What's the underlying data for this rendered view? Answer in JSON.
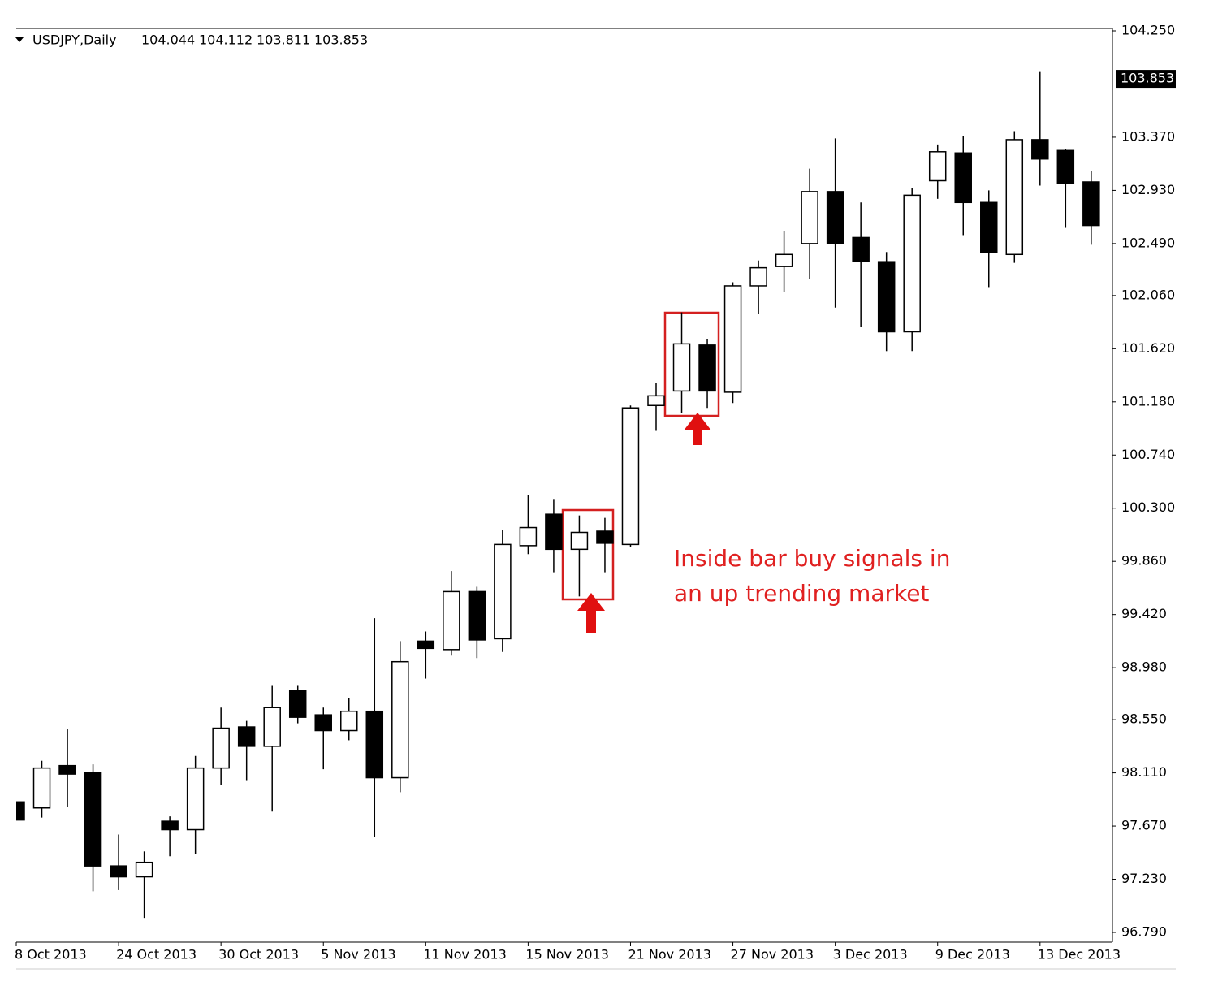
{
  "chart_data": {
    "type": "candlestick",
    "symbol": "USDJPY,Daily",
    "last_bar": {
      "open": 104.044,
      "high": 104.112,
      "low": 103.811,
      "close": 103.853
    },
    "annotation": [
      "Inside bar buy signals in",
      "an up trending market"
    ],
    "categories": [
      "8 Oct 2013",
      null,
      null,
      null,
      "24 Oct 2013",
      null,
      null,
      null,
      "30 Oct 2013",
      null,
      null,
      null,
      "5 Nov 2013",
      null,
      null,
      null,
      "11 Nov 2013",
      null,
      null,
      null,
      "15 Nov 2013",
      null,
      null,
      null,
      "21 Nov 2013",
      null,
      null,
      null,
      "27 Nov 2013",
      null,
      null,
      null,
      "3 Dec 2013",
      null,
      null,
      null,
      "9 Dec 2013",
      null,
      null,
      null,
      "13 Dec 2013",
      null,
      null
    ],
    "open": [
      97.87,
      97.82,
      98.17,
      98.11,
      97.34,
      97.25,
      97.71,
      97.64,
      98.15,
      98.49,
      98.33,
      98.79,
      98.59,
      98.46,
      98.62,
      98.07,
      99.2,
      99.13,
      99.61,
      99.22,
      99.99,
      100.25,
      99.96,
      100.11,
      100.0,
      101.15,
      101.27,
      101.65,
      101.26,
      102.14,
      102.3,
      102.49,
      102.92,
      102.54,
      102.34,
      101.76,
      103.01,
      103.24,
      102.83,
      102.4,
      103.35,
      103.26,
      103.0
    ],
    "high": [
      97.87,
      98.21,
      98.47,
      98.18,
      97.6,
      97.46,
      97.75,
      98.25,
      98.65,
      98.54,
      98.83,
      98.83,
      98.65,
      98.73,
      99.39,
      99.2,
      99.28,
      99.78,
      99.65,
      100.12,
      100.41,
      100.37,
      100.24,
      100.22,
      101.15,
      101.34,
      101.92,
      101.7,
      102.17,
      102.35,
      102.59,
      103.11,
      103.36,
      102.83,
      102.42,
      102.95,
      103.31,
      103.38,
      102.93,
      103.42,
      103.91,
      103.27,
      103.09
    ],
    "low": [
      97.72,
      97.74,
      97.83,
      97.13,
      97.14,
      96.91,
      97.42,
      97.44,
      98.01,
      98.05,
      97.79,
      98.52,
      98.14,
      98.38,
      97.58,
      97.95,
      98.89,
      99.08,
      99.06,
      99.11,
      99.92,
      99.77,
      99.57,
      99.77,
      99.98,
      100.94,
      101.09,
      101.13,
      101.17,
      101.91,
      102.09,
      102.2,
      101.96,
      101.8,
      101.6,
      101.6,
      102.86,
      102.56,
      102.13,
      102.33,
      102.97,
      102.62,
      102.48
    ],
    "close": [
      97.72,
      98.15,
      98.1,
      97.34,
      97.25,
      97.37,
      97.64,
      98.15,
      98.48,
      98.33,
      98.65,
      98.57,
      98.46,
      98.62,
      98.07,
      99.03,
      99.14,
      99.61,
      99.21,
      100.0,
      100.14,
      99.96,
      100.1,
      100.01,
      101.13,
      101.23,
      101.66,
      101.27,
      102.14,
      102.29,
      102.4,
      102.92,
      102.49,
      102.34,
      101.76,
      102.89,
      103.25,
      102.83,
      102.42,
      103.35,
      103.19,
      102.99,
      102.64
    ],
    "up_color": "#ffffff",
    "down_color": "#000000",
    "ylim": [
      96.79,
      104.25
    ],
    "yticks": [
      {
        "value": 96.79,
        "label": "96.790"
      },
      {
        "value": 97.23,
        "label": "97.230"
      },
      {
        "value": 97.67,
        "label": "97.670"
      },
      {
        "value": 98.11,
        "label": "98.110"
      },
      {
        "value": 98.55,
        "label": "98.550"
      },
      {
        "value": 98.98,
        "label": "98.980"
      },
      {
        "value": 99.42,
        "label": "99.420"
      },
      {
        "value": 99.86,
        "label": "99.860"
      },
      {
        "value": 100.3,
        "label": "100.300"
      },
      {
        "value": 100.74,
        "label": "100.740"
      },
      {
        "value": 101.18,
        "label": "101.180"
      },
      {
        "value": 101.62,
        "label": "101.620"
      },
      {
        "value": 102.06,
        "label": "102.060"
      },
      {
        "value": 102.49,
        "label": "102.490"
      },
      {
        "value": 102.93,
        "label": "102.930"
      },
      {
        "value": 103.37,
        "label": "103.370"
      },
      {
        "value": 104.25,
        "label": "104.250"
      }
    ]
  }
}
